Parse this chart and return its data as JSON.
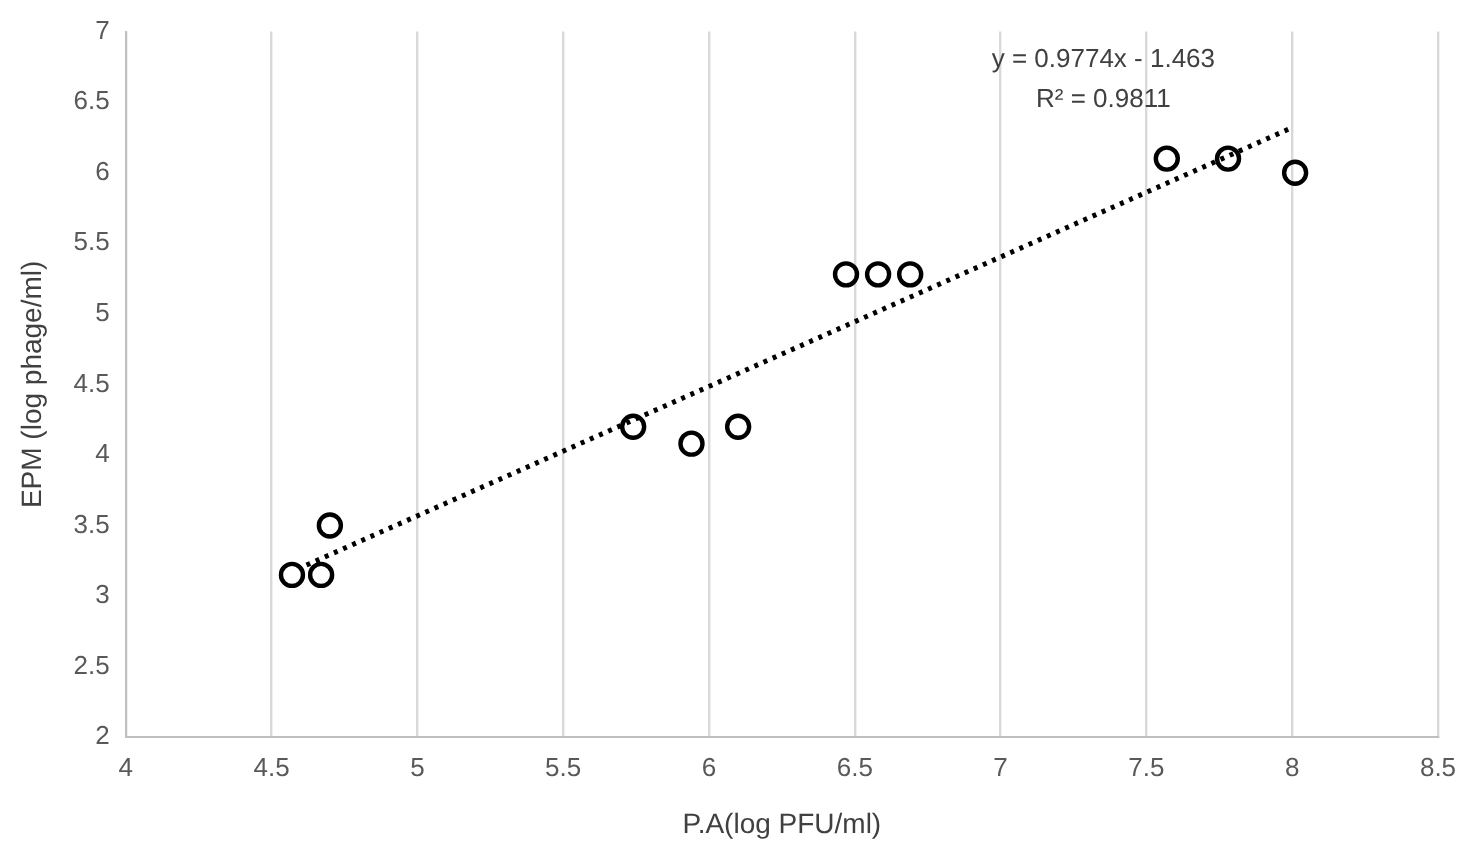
{
  "chart_data": {
    "type": "scatter",
    "xlabel": "P.A(log PFU/ml)",
    "ylabel": "EPM (log phage/ml)",
    "annotations": [
      "y = 0.9774x - 1.463",
      "R² = 0.9811"
    ],
    "xlim": [
      4,
      8.5
    ],
    "xticks": [
      4,
      4.5,
      5,
      5.5,
      6,
      6.5,
      7,
      7.5,
      8,
      8.5
    ],
    "ylim": [
      2,
      7
    ],
    "yticks": [
      2,
      2.5,
      3,
      3.5,
      4,
      4.5,
      5,
      5.5,
      6,
      6.5,
      7
    ],
    "grid": "x",
    "legend": false,
    "series": [
      {
        "color": "#000000",
        "marker": "circle",
        "x": [
          4.57,
          4.67,
          4.7,
          5.74,
          5.94,
          6.1,
          6.47,
          6.58,
          6.69,
          7.57,
          7.78,
          8.01
        ],
        "values": [
          3.15,
          3.15,
          3.5,
          4.2,
          4.08,
          4.2,
          5.28,
          5.28,
          5.28,
          6.1,
          6.1,
          6.0
        ]
      },
      {
        "type": "line",
        "color": "#000000",
        "marker": "none",
        "line_style": "dotted",
        "x": [
          4.62,
          8.0
        ],
        "values": [
          3.22,
          6.32
        ]
      }
    ]
  }
}
